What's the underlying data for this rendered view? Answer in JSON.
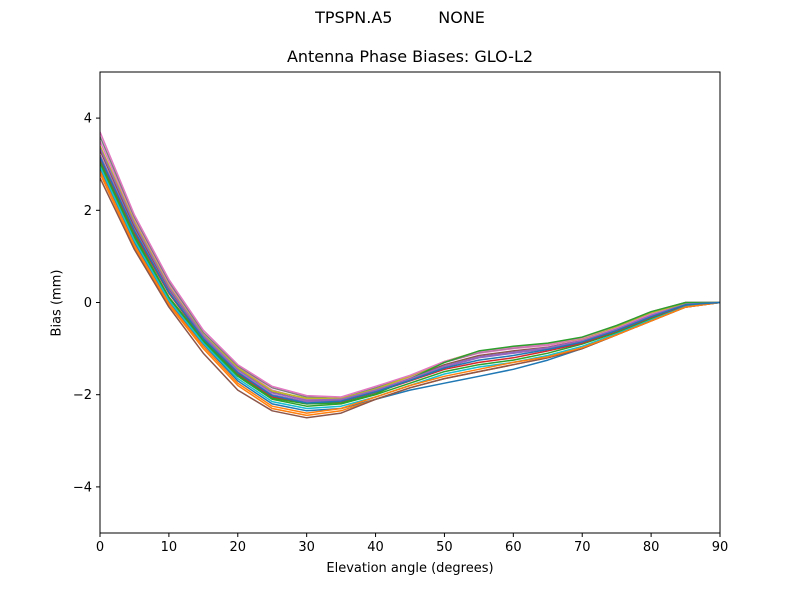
{
  "suptitle": {
    "antenna": "TPSPN.A5",
    "radome": "NONE"
  },
  "chart_data": {
    "type": "line",
    "title": "Antenna Phase Biases: GLO-L2",
    "xlabel": "Elevation angle (degrees)",
    "ylabel": "Bias (mm)",
    "xlim": [
      0,
      90
    ],
    "ylim": [
      -5,
      5
    ],
    "xticks": [
      0,
      10,
      20,
      30,
      40,
      50,
      60,
      70,
      80,
      90
    ],
    "yticks": [
      -4,
      -2,
      0,
      2,
      4
    ],
    "grid": false,
    "x": [
      0,
      5,
      10,
      15,
      20,
      25,
      30,
      35,
      40,
      45,
      50,
      55,
      60,
      65,
      70,
      75,
      80,
      85,
      90
    ],
    "series": [
      {
        "color": "#1f77b4",
        "values": [
          2.9,
          1.3,
          0.0,
          -0.9,
          -1.7,
          -2.2,
          -2.35,
          -2.3,
          -2.1,
          -1.9,
          -1.75,
          -1.6,
          -1.45,
          -1.25,
          -1.0,
          -0.7,
          -0.4,
          -0.1,
          0.0
        ]
      },
      {
        "color": "#ff7f0e",
        "values": [
          2.8,
          1.2,
          -0.05,
          -1.0,
          -1.8,
          -2.3,
          -2.45,
          -2.35,
          -2.1,
          -1.85,
          -1.65,
          -1.5,
          -1.35,
          -1.2,
          -1.0,
          -0.7,
          -0.4,
          -0.1,
          0.0
        ]
      },
      {
        "color": "#2ca02c",
        "values": [
          3.0,
          1.4,
          0.1,
          -0.85,
          -1.6,
          -2.1,
          -2.25,
          -2.2,
          -2.0,
          -1.75,
          -1.5,
          -1.35,
          -1.25,
          -1.1,
          -0.9,
          -0.65,
          -0.35,
          -0.08,
          0.0
        ]
      },
      {
        "color": "#d62728",
        "values": [
          3.1,
          1.5,
          0.2,
          -0.8,
          -1.55,
          -2.05,
          -2.2,
          -2.15,
          -1.95,
          -1.7,
          -1.45,
          -1.3,
          -1.2,
          -1.05,
          -0.88,
          -0.62,
          -0.32,
          -0.06,
          0.0
        ]
      },
      {
        "color": "#9467bd",
        "values": [
          3.2,
          1.6,
          0.25,
          -0.75,
          -1.5,
          -2.0,
          -2.15,
          -2.12,
          -1.93,
          -1.68,
          -1.4,
          -1.2,
          -1.1,
          -1.0,
          -0.85,
          -0.6,
          -0.3,
          -0.05,
          0.0
        ]
      },
      {
        "color": "#8c564b",
        "values": [
          3.3,
          1.65,
          0.3,
          -0.72,
          -1.45,
          -1.95,
          -2.12,
          -2.1,
          -1.9,
          -1.65,
          -1.35,
          -1.15,
          -1.05,
          -0.97,
          -0.82,
          -0.57,
          -0.28,
          -0.03,
          0.0
        ]
      },
      {
        "color": "#e377c2",
        "values": [
          3.5,
          1.8,
          0.4,
          -0.7,
          -1.4,
          -1.9,
          -2.1,
          -2.08,
          -1.88,
          -1.62,
          -1.3,
          -1.1,
          -1.0,
          -0.93,
          -0.8,
          -0.55,
          -0.25,
          0.0,
          0.0
        ]
      },
      {
        "color": "#7f7f7f",
        "values": [
          3.6,
          1.85,
          0.45,
          -0.65,
          -1.38,
          -1.85,
          -2.05,
          -2.08,
          -1.85,
          -1.6,
          -1.3,
          -1.08,
          -0.98,
          -0.9,
          -0.78,
          -0.52,
          -0.22,
          0.0,
          0.0
        ]
      },
      {
        "color": "#bcbd22",
        "values": [
          3.4,
          1.75,
          0.35,
          -0.7,
          -1.42,
          -1.92,
          -2.08,
          -2.08,
          -1.88,
          -1.6,
          -1.28,
          -1.06,
          -0.96,
          -0.9,
          -0.78,
          -0.52,
          -0.22,
          -0.02,
          0.0
        ]
      },
      {
        "color": "#17becf",
        "values": [
          2.95,
          1.35,
          0.05,
          -0.88,
          -1.65,
          -2.15,
          -2.3,
          -2.25,
          -2.05,
          -1.8,
          -1.55,
          -1.4,
          -1.3,
          -1.15,
          -0.95,
          -0.68,
          -0.38,
          -0.09,
          0.0
        ]
      },
      {
        "color": "#8c564b",
        "values": [
          2.7,
          1.15,
          -0.1,
          -1.1,
          -1.9,
          -2.35,
          -2.5,
          -2.4,
          -2.1,
          -1.85,
          -1.65,
          -1.5,
          -1.35,
          -1.2,
          -1.0,
          -0.7,
          -0.4,
          -0.1,
          0.0
        ]
      },
      {
        "color": "#e377c2",
        "values": [
          3.7,
          1.9,
          0.5,
          -0.6,
          -1.35,
          -1.82,
          -2.02,
          -2.05,
          -1.82,
          -1.58,
          -1.28,
          -1.07,
          -0.97,
          -0.9,
          -0.77,
          -0.5,
          -0.2,
          0.0,
          0.0
        ]
      },
      {
        "color": "#2ca02c",
        "values": [
          3.05,
          1.45,
          0.12,
          -0.82,
          -1.58,
          -2.08,
          -2.2,
          -2.18,
          -1.98,
          -1.66,
          -1.3,
          -1.05,
          -0.95,
          -0.88,
          -0.75,
          -0.5,
          -0.2,
          0.0,
          0.0
        ]
      },
      {
        "color": "#ff7f0e",
        "values": [
          2.85,
          1.25,
          -0.02,
          -0.95,
          -1.75,
          -2.25,
          -2.4,
          -2.3,
          -2.05,
          -1.8,
          -1.6,
          -1.45,
          -1.3,
          -1.18,
          -0.98,
          -0.7,
          -0.4,
          -0.1,
          0.0
        ]
      },
      {
        "color": "#9467bd",
        "values": [
          3.35,
          1.7,
          0.32,
          -0.72,
          -1.46,
          -1.96,
          -2.12,
          -2.1,
          -1.9,
          -1.66,
          -1.38,
          -1.18,
          -1.08,
          -0.98,
          -0.83,
          -0.58,
          -0.28,
          -0.04,
          0.0
        ]
      },
      {
        "color": "#1f77b4",
        "values": [
          3.15,
          1.55,
          0.22,
          -0.78,
          -1.52,
          -2.02,
          -2.18,
          -2.14,
          -1.94,
          -1.69,
          -1.42,
          -1.25,
          -1.15,
          -1.02,
          -0.86,
          -0.61,
          -0.31,
          -0.05,
          0.0
        ]
      }
    ]
  }
}
